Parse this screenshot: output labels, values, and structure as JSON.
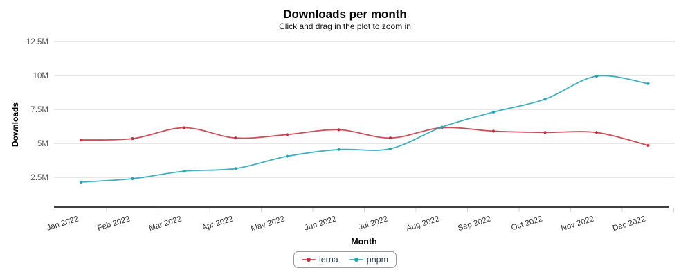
{
  "chart_data": {
    "type": "line",
    "title": "Downloads per month",
    "subtitle": "Click and drag in the plot to zoom in",
    "xlabel": "Month",
    "ylabel": "Downloads",
    "categories": [
      "Jan 2022",
      "Feb 2022",
      "Mar 2022",
      "Apr 2022",
      "May 2022",
      "Jun 2022",
      "Jul 2022",
      "Aug 2022",
      "Sep 2022",
      "Oct 2022",
      "Nov 2022",
      "Dec 2022"
    ],
    "series": [
      {
        "name": "lerna",
        "color": "#c42f3e",
        "values": [
          5.25,
          5.35,
          6.15,
          5.4,
          5.65,
          6.0,
          5.4,
          6.15,
          5.9,
          5.8,
          5.8,
          4.85
        ]
      },
      {
        "name": "pnpm",
        "color": "#21a3b3",
        "values": [
          2.15,
          2.4,
          2.95,
          3.15,
          4.05,
          4.55,
          4.6,
          6.2,
          7.3,
          8.25,
          9.95,
          9.4
        ]
      }
    ],
    "value_unit": "M",
    "yticks": [
      2.5,
      5,
      7.5,
      10,
      12.5
    ],
    "ytick_labels": [
      "2.5M",
      "5M",
      "7.5M",
      "10M",
      "12.5M"
    ],
    "ylim": [
      0.3,
      13.1
    ],
    "grid": "horizontal",
    "legend_position": "bottom-center",
    "curve": "smooth",
    "markers": "dot"
  },
  "colors": {
    "background": "#ffffff",
    "gridline": "#cccccc",
    "axis_line": "#000000",
    "tick_mark": "#ccd6eb",
    "ytick_label": "#555555",
    "xtick_label": "#333333",
    "legend_border": "#999999",
    "legend_text": "#2b3e50"
  }
}
